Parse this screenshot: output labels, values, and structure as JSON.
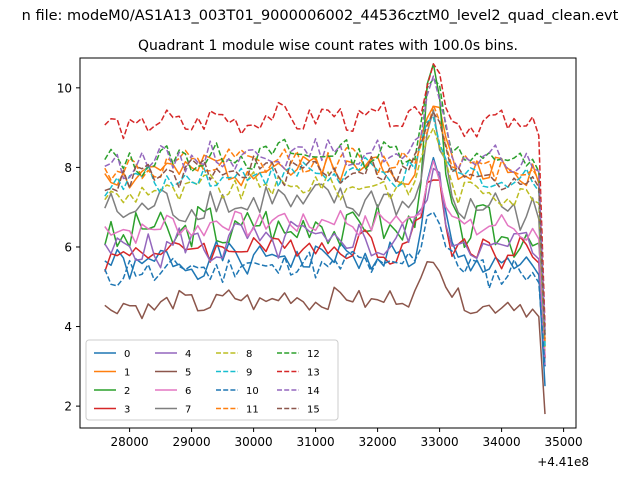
{
  "chart_data": {
    "type": "line",
    "suptitle": "n file: modeM0/AS1A13_003T01_9000006002_44536cztM0_level2_quad_clean.evt",
    "title": "Quadrant 1 module wise count rates with 100.0s bins.",
    "xlabel": "",
    "ylabel": "",
    "x_offset_label": "+4.41e8",
    "xlim": [
      27200,
      35200
    ],
    "ylim": [
      1.45,
      10.75
    ],
    "x_ticks": [
      28000,
      29000,
      30000,
      31000,
      32000,
      33000,
      34000,
      35000
    ],
    "y_ticks": [
      2,
      4,
      6,
      8,
      10
    ],
    "x_start": 27600,
    "x_step": 100,
    "legend_position": "lower-left",
    "legend_columns": 4,
    "grid": false,
    "series": [
      {
        "name": "0",
        "color": "#1f77b4",
        "dash": "solid",
        "base": 5.5,
        "amp": 0.35,
        "peak": 2.3,
        "end": 2.5,
        "seed": 1
      },
      {
        "name": "1",
        "color": "#ff7f0e",
        "dash": "solid",
        "base": 7.8,
        "amp": 0.35,
        "peak": 1.6,
        "end": 3.6,
        "seed": 2
      },
      {
        "name": "2",
        "color": "#2ca02c",
        "dash": "solid",
        "base": 6.3,
        "amp": 0.5,
        "peak": 3.8,
        "end": 3.9,
        "seed": 3
      },
      {
        "name": "3",
        "color": "#d62728",
        "dash": "solid",
        "base": 5.8,
        "amp": 0.35,
        "peak": 2.0,
        "end": 3.2,
        "seed": 4
      },
      {
        "name": "4",
        "color": "#9467bd",
        "dash": "solid",
        "base": 5.9,
        "amp": 0.45,
        "peak": 2.0,
        "end": 3.0,
        "seed": 5
      },
      {
        "name": "5",
        "color": "#8c564b",
        "dash": "solid",
        "base": 4.45,
        "amp": 0.25,
        "peak": 1.3,
        "end": 1.8,
        "seed": 6
      },
      {
        "name": "6",
        "color": "#e377c2",
        "dash": "solid",
        "base": 6.4,
        "amp": 0.3,
        "peak": 1.6,
        "end": 3.3,
        "seed": 7
      },
      {
        "name": "7",
        "color": "#7f7f7f",
        "dash": "solid",
        "base": 6.9,
        "amp": 0.4,
        "peak": 1.9,
        "end": 3.5,
        "seed": 8
      },
      {
        "name": "8",
        "color": "#bcbd22",
        "dash": "dashed",
        "base": 7.3,
        "amp": 0.3,
        "peak": 1.5,
        "end": 3.4,
        "seed": 9
      },
      {
        "name": "9",
        "color": "#17becf",
        "dash": "dashed",
        "base": 7.6,
        "amp": 0.3,
        "peak": 1.3,
        "end": 3.5,
        "seed": 10
      },
      {
        "name": "10",
        "color": "#1f77b4",
        "dash": "dashed",
        "base": 5.3,
        "amp": 0.35,
        "peak": 1.7,
        "end": 3.0,
        "seed": 11
      },
      {
        "name": "11",
        "color": "#ff7f0e",
        "dash": "dashed",
        "base": 7.9,
        "amp": 0.3,
        "peak": 1.5,
        "end": 3.6,
        "seed": 12
      },
      {
        "name": "12",
        "color": "#2ca02c",
        "dash": "dashed",
        "base": 8.1,
        "amp": 0.3,
        "peak": 2.2,
        "end": 3.8,
        "seed": 13
      },
      {
        "name": "13",
        "color": "#d62728",
        "dash": "dashed",
        "base": 9.0,
        "amp": 0.3,
        "peak": 1.3,
        "end": 4.0,
        "seed": 14
      },
      {
        "name": "14",
        "color": "#9467bd",
        "dash": "dashed",
        "base": 8.1,
        "amp": 0.3,
        "peak": 1.6,
        "end": 3.8,
        "seed": 15
      },
      {
        "name": "15",
        "color": "#8c564b",
        "dash": "dashed",
        "base": 7.7,
        "amp": 0.3,
        "peak": 1.5,
        "end": 3.7,
        "seed": 16
      }
    ]
  }
}
